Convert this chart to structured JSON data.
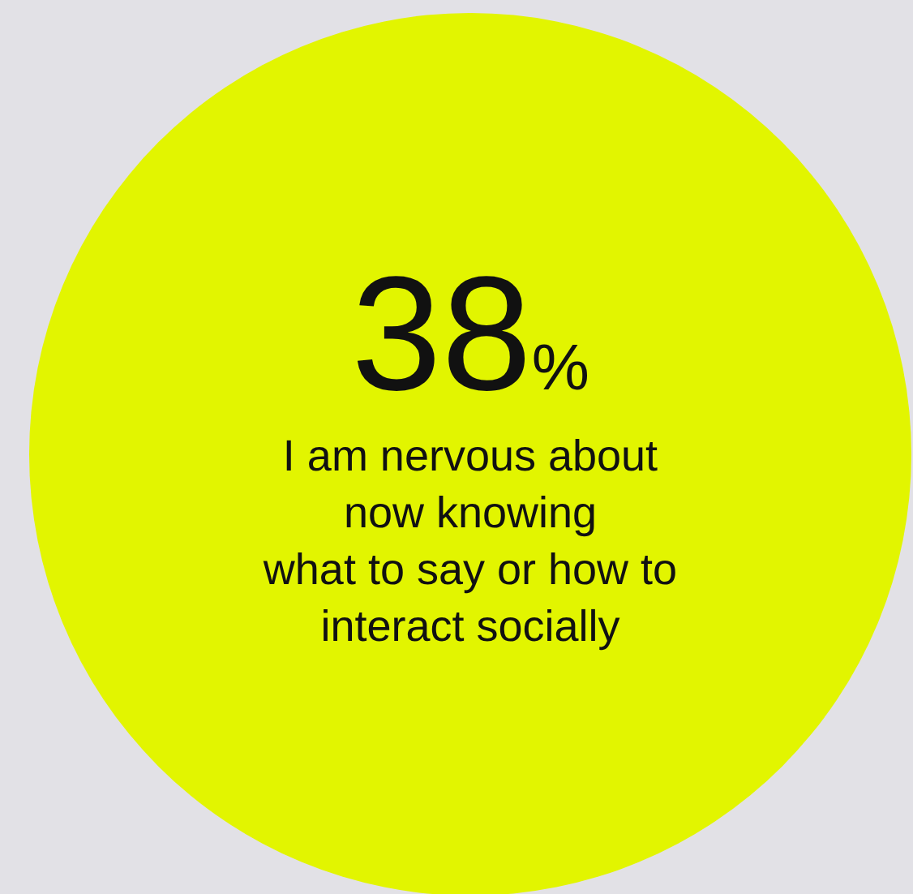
{
  "chart_data": {
    "type": "other",
    "categories": [
      "I am nervous about\nnow knowing\nwhat to say or how to\ninteract socially"
    ],
    "values": [
      38
    ],
    "value_labels": [
      "38%"
    ],
    "colors": [
      "#e2f500"
    ]
  }
}
